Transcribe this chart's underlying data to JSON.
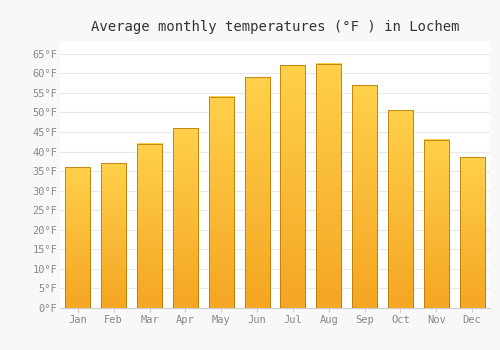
{
  "title": "Average monthly temperatures (°F ) in Lochem",
  "months": [
    "Jan",
    "Feb",
    "Mar",
    "Apr",
    "May",
    "Jun",
    "Jul",
    "Aug",
    "Sep",
    "Oct",
    "Nov",
    "Dec"
  ],
  "values": [
    36.0,
    37.0,
    42.0,
    46.0,
    54.0,
    59.0,
    62.0,
    62.5,
    57.0,
    50.5,
    43.0,
    38.5
  ],
  "ylim": [
    0,
    68
  ],
  "yticks": [
    0,
    5,
    10,
    15,
    20,
    25,
    30,
    35,
    40,
    45,
    50,
    55,
    60,
    65
  ],
  "ytick_labels": [
    "0°F",
    "5°F",
    "10°F",
    "15°F",
    "20°F",
    "25°F",
    "30°F",
    "35°F",
    "40°F",
    "45°F",
    "50°F",
    "55°F",
    "60°F",
    "65°F"
  ],
  "bg_color": "#f8f8f8",
  "plot_bg_color": "#ffffff",
  "grid_color": "#e8e8e8",
  "bar_color_bottom": "#F5A623",
  "bar_color_top": "#FFD04A",
  "bar_edge_color": "#B8790A",
  "title_fontsize": 10,
  "tick_fontsize": 7.5,
  "tick_color": "#888888",
  "bar_width": 0.7
}
